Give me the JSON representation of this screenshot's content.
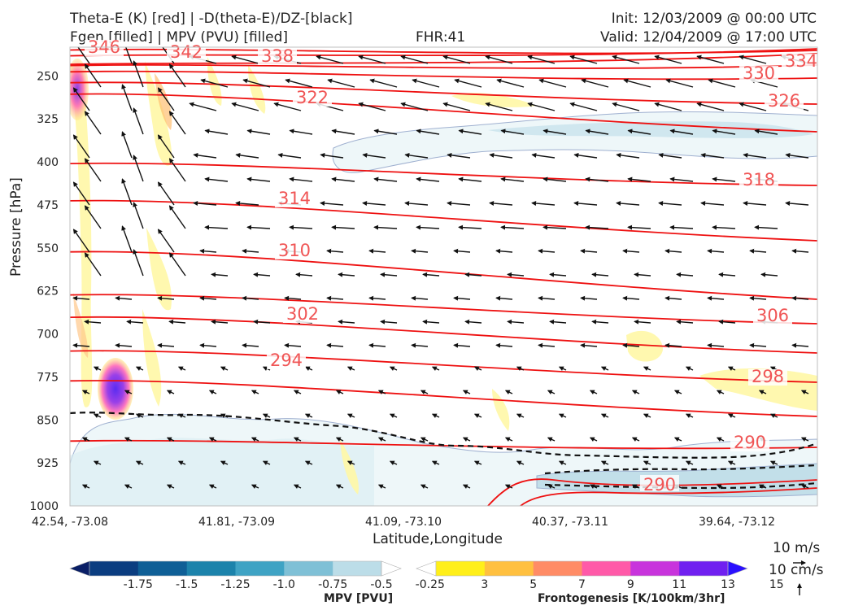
{
  "header": {
    "line1_left": "Theta-E (K) [red] | -D(theta-E)/DZ-[black]",
    "line2_left": "Fgen [filled] | MPV (PVU) [filled]",
    "fhr": "FHR:41",
    "init": "Init: 12/03/2009 @ 00:00 UTC",
    "valid": "Valid: 12/04/2009 @ 17:00 UTC"
  },
  "chart_data": {
    "type": "cross-section",
    "xlabel": "Latitude,Longitude",
    "ylabel": "Pressure [hPa]",
    "x_ticks": [
      "42.54, -73.08",
      "41.81, -73.09",
      "41.09, -73.10",
      "40.37, -73.11",
      "39.64, -73.12"
    ],
    "y_ticks": [
      250,
      325,
      400,
      475,
      550,
      625,
      700,
      775,
      850,
      925,
      1000
    ],
    "ylim": [
      1000,
      200
    ],
    "ylim_inverted": true,
    "theta_e_contours": [
      {
        "label": "346",
        "p_left": 205
      },
      {
        "label": "342",
        "p_left": 230
      },
      {
        "label": "338",
        "p_left": 215
      },
      {
        "label": "334",
        "p_left": 232
      },
      {
        "label": "330",
        "p_left": 243
      },
      {
        "label": "326",
        "p_left": 262
      },
      {
        "label": "322",
        "p_left": 282
      },
      {
        "label": "318",
        "p_left": 403
      },
      {
        "label": "314",
        "p_left": 468
      },
      {
        "label": "310",
        "p_left": 557
      },
      {
        "label": "306",
        "p_left": 632
      },
      {
        "label": "302",
        "p_left": 671
      },
      {
        "label": "298",
        "p_left": 730
      },
      {
        "label": "294",
        "p_left": 782
      },
      {
        "label": "290",
        "p_left": 887
      }
    ],
    "mpv_colorbar": {
      "label": "MPV [PVU]",
      "ticks": [
        "-1.75",
        "-1.5",
        "-1.25",
        "-1.0",
        "-0.75",
        "-0.5",
        "-0.25"
      ],
      "colors": [
        "#0a1f66",
        "#0b3d80",
        "#0f5f96",
        "#1c83ab",
        "#3fa3c4",
        "#7fc0d6",
        "#bcdde8",
        "#ffffff"
      ]
    },
    "fgen_colorbar": {
      "label": "Frontogenesis [K/100km/3hr]",
      "ticks": [
        "3",
        "5",
        "7",
        "9",
        "11",
        "13",
        "15"
      ],
      "colors": [
        "#ffffff",
        "#ffef1a",
        "#ffc040",
        "#ff8c66",
        "#ff5aa8",
        "#c834dc",
        "#7020f0",
        "#2a10ff"
      ]
    },
    "wind_reference": {
      "horizontal": "10 m/s",
      "vertical": "10 cm/s"
    }
  }
}
